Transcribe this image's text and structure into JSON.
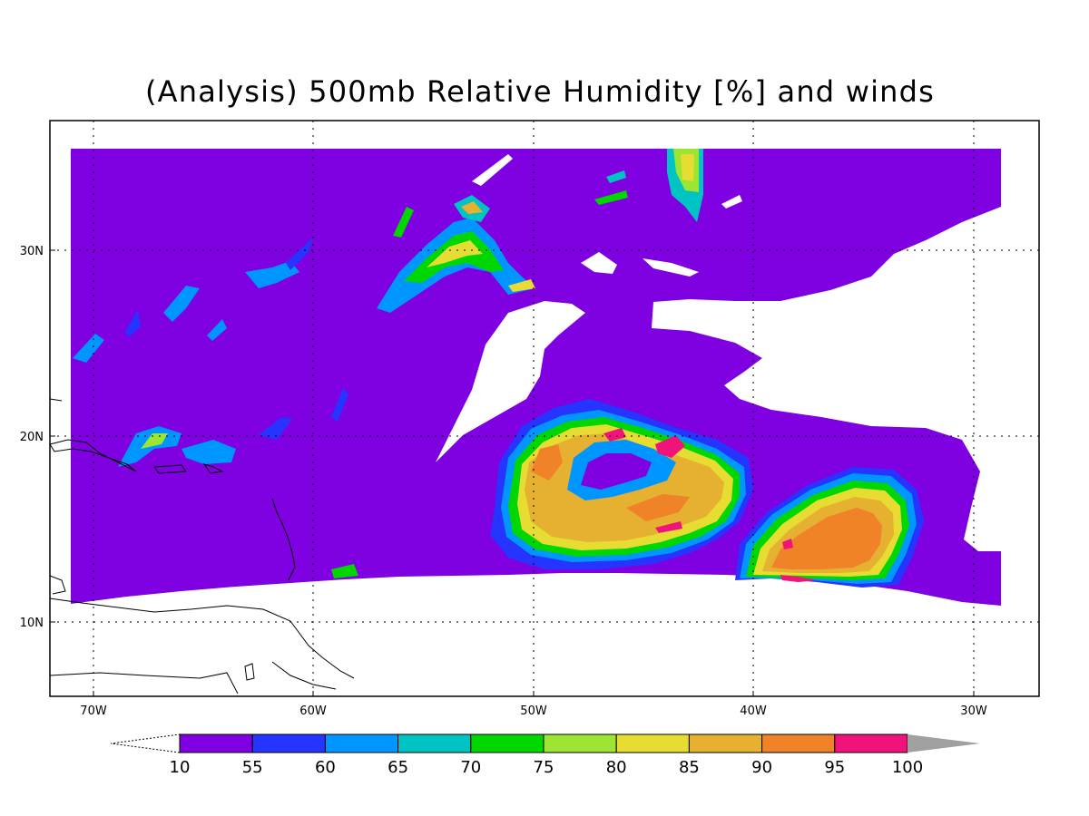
{
  "title": "(Analysis) 500mb Relative Humidity [%] and winds",
  "axes": {
    "lon_ticks": [
      "70W",
      "60W",
      "50W",
      "40W",
      "30W"
    ],
    "lat_ticks": [
      "30N",
      "20N",
      "10N"
    ]
  },
  "colorbar": {
    "labels": [
      "10",
      "55",
      "60",
      "65",
      "70",
      "75",
      "80",
      "85",
      "90",
      "95",
      "100"
    ],
    "colors": [
      "#7f00e0",
      "#2634ff",
      "#0096ff",
      "#00c4c4",
      "#00d600",
      "#9de533",
      "#e6dc32",
      "#e6b030",
      "#f08228",
      "#f0147a"
    ],
    "over_color": "#a0a0a0"
  },
  "palette": {
    "background": "#ffffff",
    "missing": "#ffffff",
    "coast": "#000000",
    "grid": "#000000"
  }
}
